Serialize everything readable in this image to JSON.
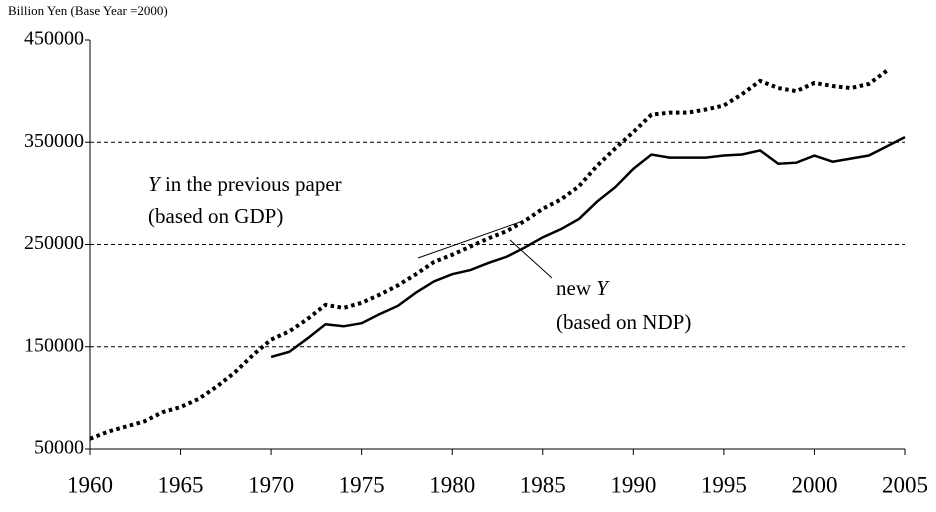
{
  "chart_data": {
    "type": "line",
    "y_axis_label": "Billion Yen (Base Year =2000)",
    "x": [
      1960,
      1961,
      1962,
      1963,
      1964,
      1965,
      1966,
      1967,
      1968,
      1969,
      1970,
      1971,
      1972,
      1973,
      1974,
      1975,
      1976,
      1977,
      1978,
      1979,
      1980,
      1981,
      1982,
      1983,
      1984,
      1985,
      1986,
      1987,
      1988,
      1989,
      1990,
      1991,
      1992,
      1993,
      1994,
      1995,
      1996,
      1997,
      1998,
      1999,
      2000,
      2001,
      2002,
      2003,
      2004,
      2005
    ],
    "series": [
      {
        "color": "#000000",
        "style": "dotted",
        "values": [
          60000,
          67000,
          72000,
          77000,
          86000,
          91000,
          99000,
          111000,
          125000,
          142000,
          157000,
          165000,
          177000,
          191000,
          188000,
          193000,
          201000,
          210000,
          221000,
          233000,
          240000,
          248000,
          256000,
          263000,
          273000,
          285000,
          294000,
          307000,
          327000,
          344000,
          360000,
          377000,
          379000,
          379000,
          382000,
          386000,
          397000,
          410000,
          403000,
          400000,
          408000,
          405000,
          403000,
          407000,
          420000,
          null
        ]
      },
      {
        "color": "#000000",
        "style": "solid",
        "values": [
          null,
          null,
          null,
          null,
          null,
          null,
          null,
          null,
          null,
          null,
          140000,
          145000,
          158000,
          172000,
          170000,
          173000,
          182000,
          190000,
          203000,
          214000,
          221000,
          225000,
          232000,
          238000,
          247000,
          257000,
          265000,
          275000,
          292000,
          306000,
          324000,
          338000,
          335000,
          335000,
          335000,
          337000,
          338000,
          342000,
          329000,
          330000,
          337000,
          331000,
          334000,
          337000,
          346000,
          355000
        ]
      }
    ],
    "annotations": [
      {
        "parts": [
          "Y",
          " in the previous paper"
        ],
        "line2": "(based on GDP)"
      },
      {
        "parts": [
          "new ",
          "Y"
        ],
        "line2": "(based on NDP)"
      }
    ],
    "xlim": [
      1960,
      2005
    ],
    "xticks": [
      1960,
      1965,
      1970,
      1975,
      1980,
      1985,
      1990,
      1995,
      2000,
      2005
    ],
    "ylim": [
      50000,
      450000
    ],
    "yticks": [
      50000,
      150000,
      250000,
      350000,
      450000
    ],
    "grid": true
  }
}
